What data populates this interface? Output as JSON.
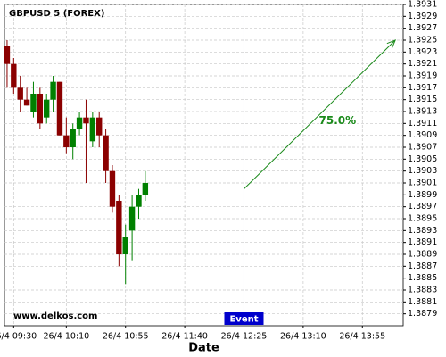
{
  "chart_data": {
    "type": "candlestick",
    "title": "GBPUSD 5 (FOREX)",
    "watermark": "www.delkos.com",
    "x_label": "Date",
    "x": [
      565,
      570,
      575,
      580,
      585,
      590,
      595,
      600,
      605,
      610,
      615,
      620,
      625,
      630,
      635,
      640,
      645,
      650,
      655,
      660,
      665,
      670
    ],
    "open": [
      1.3924,
      1.3921,
      1.3917,
      1.3915,
      1.3913,
      1.3916,
      1.3912,
      1.3915,
      1.3918,
      1.3909,
      1.3907,
      1.391,
      1.3912,
      1.3908,
      1.3912,
      1.3909,
      1.3903,
      1.3898,
      1.3889,
      1.3893,
      1.3897,
      1.3899
    ],
    "high": [
      1.3925,
      1.3922,
      1.3919,
      1.3917,
      1.3918,
      1.3917,
      1.3916,
      1.3919,
      1.3918,
      1.3912,
      1.3911,
      1.3913,
      1.3915,
      1.3913,
      1.3913,
      1.391,
      1.3904,
      1.3899,
      1.3894,
      1.3899,
      1.39,
      1.3903
    ],
    "low": [
      1.3917,
      1.3916,
      1.3913,
      1.3914,
      1.3912,
      1.391,
      1.3911,
      1.3913,
      1.3909,
      1.3906,
      1.3905,
      1.3909,
      1.3901,
      1.3907,
      1.3907,
      1.3901,
      1.3896,
      1.3887,
      1.3884,
      1.3888,
      1.3895,
      1.3898
    ],
    "close": [
      1.3921,
      1.3917,
      1.3915,
      1.3914,
      1.3916,
      1.3911,
      1.3915,
      1.3918,
      1.3909,
      1.3907,
      1.391,
      1.3912,
      1.3911,
      1.3912,
      1.3909,
      1.3903,
      1.3897,
      1.3889,
      1.3892,
      1.3897,
      1.3899,
      1.3901
    ],
    "up_color": "#008000",
    "down_color": "#8b0000",
    "xlim": [
      563,
      866
    ],
    "xticks": [
      {
        "value": 570,
        "label": "26/4 09:30"
      },
      {
        "value": 610,
        "label": "26/4 10:10"
      },
      {
        "value": 655,
        "label": "26/4 10:55"
      },
      {
        "value": 700,
        "label": "26/4 11:40"
      },
      {
        "value": 745,
        "label": "26/4 12:25"
      },
      {
        "value": 790,
        "label": "26/4 13:10"
      },
      {
        "value": 835,
        "label": "26/4 13:55"
      }
    ],
    "ylim": [
      1.3877,
      1.3931
    ],
    "yticks": [
      1.3879,
      1.3881,
      1.3883,
      1.3885,
      1.3887,
      1.3889,
      1.3891,
      1.3893,
      1.3895,
      1.3897,
      1.3899,
      1.3901,
      1.3903,
      1.3905,
      1.3907,
      1.3909,
      1.3911,
      1.3913,
      1.3915,
      1.3917,
      1.3919,
      1.3921,
      1.3923,
      1.3925,
      1.3927,
      1.3929,
      1.3931
    ],
    "grid": true,
    "event": {
      "x": 745,
      "label": "Event",
      "color": "#0000cc"
    },
    "forecast": {
      "x": [
        745,
        860
      ],
      "y": [
        1.39,
        1.3925
      ],
      "label": "75.0%",
      "color": "#1a8a1a"
    }
  }
}
